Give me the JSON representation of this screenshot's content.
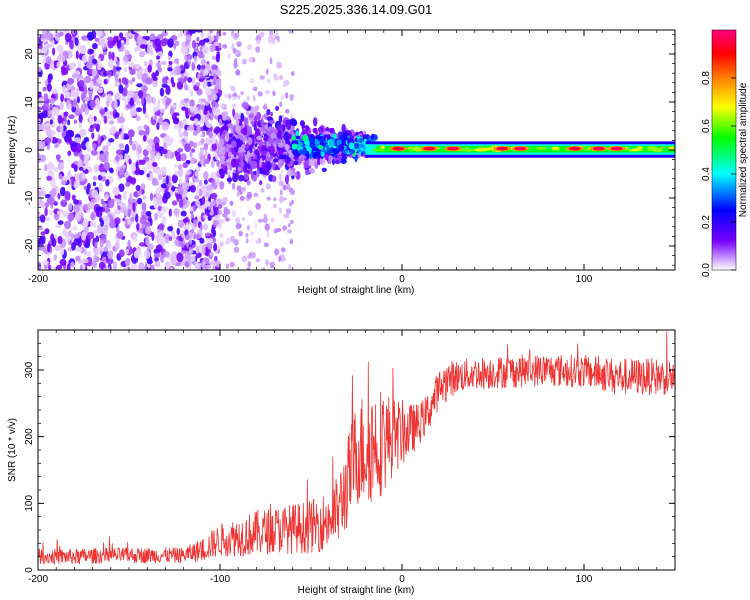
{
  "figure_title": "S225.2025.336.14.09.G01",
  "chart_data": [
    {
      "type": "heatmap",
      "name": "spectrogram",
      "xlabel": "Height of straight line (km)",
      "ylabel": "Frequency (Hz)",
      "xlim": [
        -200,
        150
      ],
      "ylim": [
        -25,
        25
      ],
      "x_ticks": [
        -200,
        -100,
        0,
        100
      ],
      "y_ticks": [
        -20,
        -10,
        0,
        10,
        20
      ],
      "colorbar": {
        "label": "Normalized spectral amplitude",
        "range": [
          0.0,
          1.0
        ],
        "ticks": [
          0.0,
          0.2,
          0.4,
          0.6,
          0.8
        ],
        "tick_labels": [
          "0.0",
          "0.2",
          "0.4",
          "0.6",
          "0.8"
        ],
        "colors": [
          "#ffffff",
          "#7a00ff",
          "#0000ff",
          "#00ffff",
          "#00ff00",
          "#ffff00",
          "#ff7f00",
          "#ff0000",
          "#ff0080"
        ]
      },
      "regions": [
        {
          "x_range": [
            -200,
            -100
          ],
          "freq_range": [
            -25,
            25
          ],
          "amplitude": 0.05,
          "description": "scattered low-amplitude noise"
        },
        {
          "x_range": [
            -100,
            -20
          ],
          "freq_range": [
            -8,
            10
          ],
          "amplitude": 0.15,
          "description": "noise converging toward 0 Hz"
        },
        {
          "x_range": [
            -60,
            -15
          ],
          "freq_range": [
            -3,
            4
          ],
          "amplitude": 0.35,
          "description": "emerging signal"
        },
        {
          "x_range": [
            -20,
            150
          ],
          "freq_range": [
            -1.5,
            1.5
          ],
          "amplitude": 0.95,
          "description": "strong signal band at ~0 Hz"
        }
      ],
      "hot_spots_x": [
        -2,
        15,
        28,
        55,
        65,
        95,
        108,
        118
      ]
    },
    {
      "type": "line",
      "name": "snr",
      "xlabel": "Height of straight line (km)",
      "ylabel": "SNR (10 * v/v)",
      "xlim": [
        -200,
        150
      ],
      "ylim": [
        0,
        360
      ],
      "x_ticks": [
        -200,
        -100,
        0,
        100
      ],
      "y_ticks": [
        0,
        100,
        200,
        300
      ],
      "color": "#ee3333",
      "series": [
        {
          "name": "SNR",
          "x": [
            -200,
            -180,
            -160,
            -140,
            -120,
            -110,
            -100,
            -90,
            -80,
            -70,
            -60,
            -50,
            -40,
            -35,
            -30,
            -25,
            -20,
            -15,
            -10,
            -5,
            0,
            5,
            10,
            15,
            20,
            25,
            30,
            40,
            60,
            80,
            100,
            120,
            150
          ],
          "y": [
            20,
            20,
            22,
            22,
            22,
            30,
            45,
            50,
            55,
            60,
            62,
            65,
            75,
            90,
            130,
            175,
            185,
            190,
            195,
            200,
            205,
            210,
            220,
            240,
            270,
            285,
            290,
            295,
            298,
            300,
            298,
            290,
            290
          ],
          "noise": [
            12,
            12,
            12,
            12,
            12,
            18,
            25,
            30,
            35,
            35,
            38,
            40,
            45,
            55,
            70,
            80,
            90,
            90,
            80,
            60,
            50,
            40,
            30,
            30,
            30,
            30,
            25,
            25,
            25,
            25,
            25,
            28,
            28
          ]
        }
      ]
    }
  ]
}
